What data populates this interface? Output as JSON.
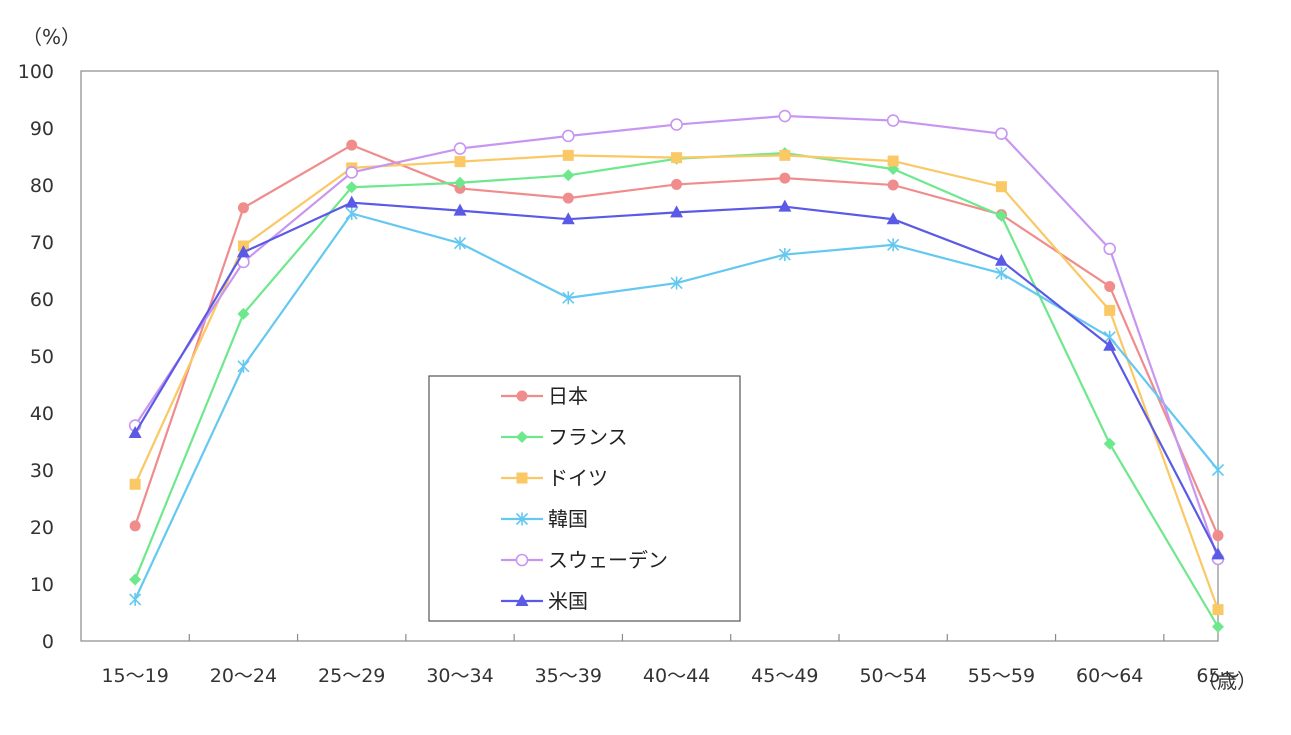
{
  "chart_data": {
    "type": "line",
    "y_unit_label": "（%）",
    "x_unit_label": "（歳）",
    "categories": [
      "15～19",
      "20～24",
      "25～29",
      "30～34",
      "35～39",
      "40～44",
      "45～49",
      "50～54",
      "55～59",
      "60～64",
      "65～"
    ],
    "ylim": [
      0,
      100
    ],
    "yticks": [
      "0",
      "10",
      "20",
      "30",
      "40",
      "50",
      "60",
      "70",
      "80",
      "90",
      "100"
    ],
    "grid": false,
    "legend_position": "center-bottom",
    "series": [
      {
        "name": "日本",
        "color": "#F08C8C",
        "marker": "circle",
        "values": [
          20.2,
          76.0,
          87.0,
          79.4,
          77.7,
          80.1,
          81.2,
          80.0,
          74.8,
          62.2,
          18.5
        ]
      },
      {
        "name": "フランス",
        "color": "#6EE88C",
        "marker": "diamond",
        "values": [
          10.8,
          57.4,
          79.6,
          80.4,
          81.7,
          84.6,
          85.6,
          82.8,
          74.6,
          34.6,
          2.5
        ]
      },
      {
        "name": "ドイツ",
        "color": "#FAC864",
        "marker": "square",
        "values": [
          27.5,
          69.3,
          83.0,
          84.1,
          85.2,
          84.8,
          85.2,
          84.2,
          79.7,
          58.0,
          5.5
        ]
      },
      {
        "name": "韓国",
        "color": "#64C8F0",
        "marker": "star",
        "values": [
          7.3,
          48.2,
          75.0,
          69.8,
          60.2,
          62.8,
          67.8,
          69.5,
          64.5,
          53.3,
          30.0
        ]
      },
      {
        "name": "スウェーデン",
        "color": "#C896F0",
        "marker": "open-circle",
        "values": [
          37.8,
          66.5,
          82.2,
          86.4,
          88.6,
          90.6,
          92.1,
          91.3,
          89.0,
          68.8,
          14.4
        ]
      },
      {
        "name": "米国",
        "color": "#5A5AE6",
        "marker": "triangle",
        "values": [
          36.5,
          68.2,
          76.9,
          75.5,
          74.0,
          75.2,
          76.2,
          74.0,
          66.7,
          51.8,
          15.2
        ]
      }
    ]
  }
}
